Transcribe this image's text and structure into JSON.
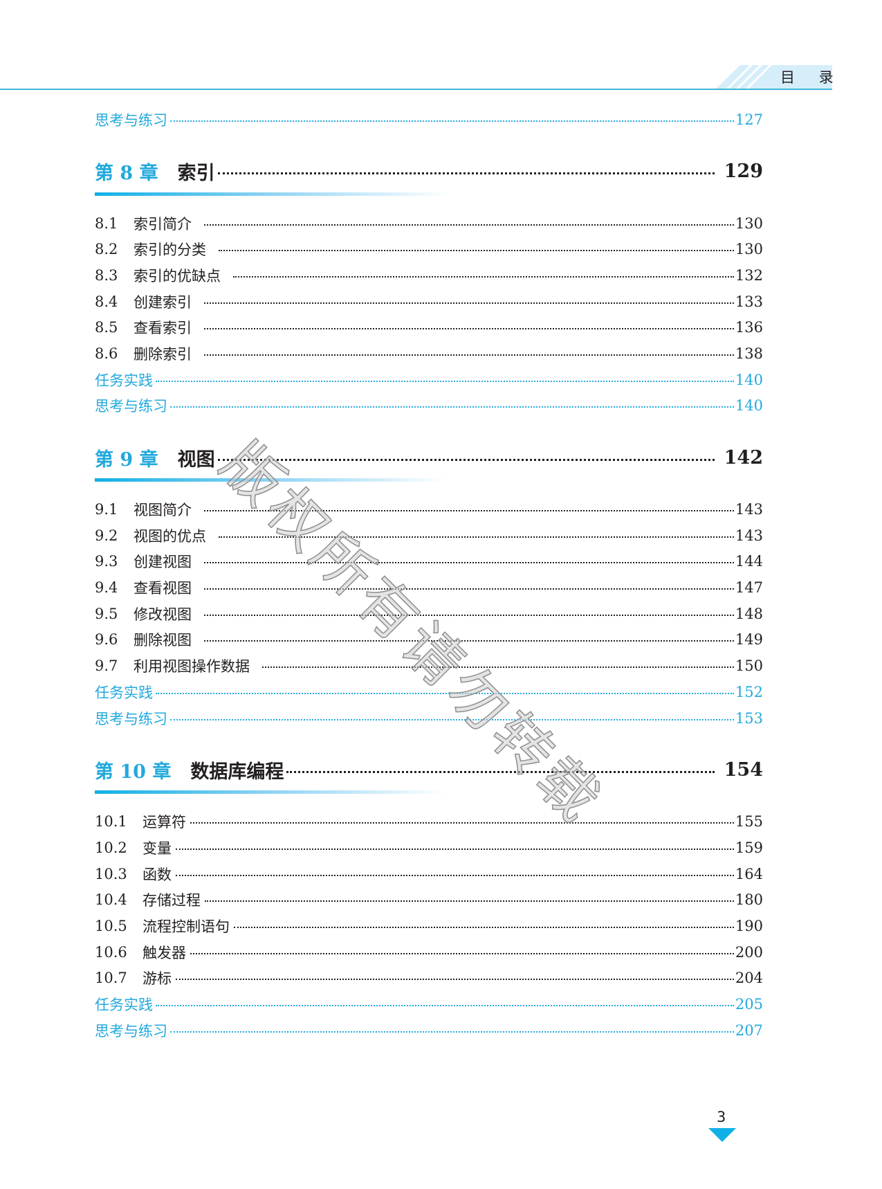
{
  "header": {
    "title": "目 录"
  },
  "top_entry": {
    "label": "思考与练习",
    "page": "127"
  },
  "chapters": [
    {
      "number": "第 8 章",
      "title": "索引",
      "page": "129",
      "items": [
        {
          "num": "8.1",
          "title": "索引简介",
          "page": "130"
        },
        {
          "num": "8.2",
          "title": "索引的分类",
          "page": "130"
        },
        {
          "num": "8.3",
          "title": "索引的优缺点",
          "page": "132"
        },
        {
          "num": "8.4",
          "title": "创建索引",
          "page": "133"
        },
        {
          "num": "8.5",
          "title": "查看索引",
          "page": "136"
        },
        {
          "num": "8.6",
          "title": "删除索引",
          "page": "138"
        }
      ],
      "extras": [
        {
          "label": "任务实践",
          "page": "140"
        },
        {
          "label": "思考与练习",
          "page": "140"
        }
      ]
    },
    {
      "number": "第 9 章",
      "title": "视图",
      "page": "142",
      "items": [
        {
          "num": "9.1",
          "title": "视图简介",
          "page": "143"
        },
        {
          "num": "9.2",
          "title": "视图的优点",
          "page": "143"
        },
        {
          "num": "9.3",
          "title": "创建视图",
          "page": "144"
        },
        {
          "num": "9.4",
          "title": "查看视图",
          "page": "147"
        },
        {
          "num": "9.5",
          "title": "修改视图",
          "page": "148"
        },
        {
          "num": "9.6",
          "title": "删除视图",
          "page": "149"
        },
        {
          "num": "9.7",
          "title": "利用视图操作数据",
          "page": "150"
        }
      ],
      "extras": [
        {
          "label": "任务实践",
          "page": "152"
        },
        {
          "label": "思考与练习",
          "page": "153"
        }
      ]
    },
    {
      "number": "第 10 章",
      "title": "数据库编程",
      "page": "154",
      "items": [
        {
          "num": "10.1",
          "title": "运算符",
          "page": "155"
        },
        {
          "num": "10.2",
          "title": "变量",
          "page": "159"
        },
        {
          "num": "10.3",
          "title": "函数",
          "page": "164"
        },
        {
          "num": "10.4",
          "title": "存储过程",
          "page": "180"
        },
        {
          "num": "10.5",
          "title": "流程控制语句",
          "page": "190"
        },
        {
          "num": "10.6",
          "title": "触发器",
          "page": "200"
        },
        {
          "num": "10.7",
          "title": "游标",
          "page": "204"
        }
      ],
      "extras": [
        {
          "label": "任务实践",
          "page": "205"
        },
        {
          "label": "思考与练习",
          "page": "207"
        }
      ]
    }
  ],
  "page_number": "3",
  "watermark": "版权所有请勿转载",
  "colors": {
    "accent": "#22a9dc",
    "header_bg": "#d6eefa",
    "text": "#231f20"
  }
}
